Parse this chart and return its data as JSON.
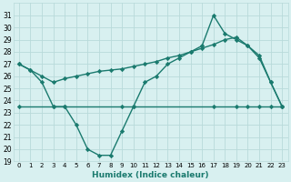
{
  "line1_x": [
    0,
    1,
    2,
    3,
    4,
    5,
    6,
    7,
    8,
    9,
    10,
    11,
    12,
    13,
    14,
    15,
    16,
    17,
    18,
    19,
    20,
    21,
    22,
    23
  ],
  "line1_y": [
    27.0,
    26.5,
    25.5,
    23.5,
    23.5,
    22.0,
    20.0,
    19.5,
    19.5,
    21.5,
    23.5,
    25.5,
    26.0,
    27.0,
    27.5,
    28.0,
    28.5,
    31.0,
    29.5,
    29.0,
    28.5,
    27.5,
    25.5,
    23.5
  ],
  "line2_x": [
    0,
    1,
    2,
    3,
    4,
    5,
    6,
    7,
    8,
    9,
    10,
    11,
    12,
    13,
    14,
    15,
    16,
    17,
    18,
    19,
    20,
    21,
    22,
    23
  ],
  "line2_y": [
    27.0,
    26.5,
    26.0,
    25.5,
    25.8,
    26.0,
    26.2,
    26.4,
    26.5,
    26.6,
    26.8,
    27.0,
    27.2,
    27.5,
    27.7,
    28.0,
    28.3,
    28.6,
    29.0,
    29.2,
    28.5,
    27.7,
    25.5,
    23.5
  ],
  "line3_x": [
    0,
    3,
    4,
    9,
    10,
    17,
    19,
    20,
    21,
    22,
    23
  ],
  "line3_y": [
    23.5,
    23.5,
    23.5,
    23.5,
    23.5,
    23.5,
    23.5,
    23.5,
    23.5,
    23.5,
    23.5
  ],
  "color": "#1a7a6e",
  "bg_color": "#d8f0f0",
  "grid_color": "#b8dada",
  "xlabel": "Humidex (Indice chaleur)",
  "ylim": [
    19,
    32
  ],
  "xlim": [
    -0.5,
    23.5
  ],
  "yticks": [
    19,
    20,
    21,
    22,
    23,
    24,
    25,
    26,
    27,
    28,
    29,
    30,
    31
  ],
  "xticks": [
    0,
    1,
    2,
    3,
    4,
    5,
    6,
    7,
    8,
    9,
    10,
    11,
    12,
    13,
    14,
    15,
    16,
    17,
    18,
    19,
    20,
    21,
    22,
    23
  ],
  "xtick_labels": [
    "0",
    "1",
    "2",
    "3",
    "4",
    "5",
    "6",
    "7",
    "8",
    "9",
    "10",
    "11",
    "12",
    "13",
    "14",
    "15",
    "16",
    "17",
    "18",
    "19",
    "20",
    "21",
    "22",
    "23"
  ],
  "marker": "D",
  "marker_size": 2.2,
  "line_width": 1.0
}
